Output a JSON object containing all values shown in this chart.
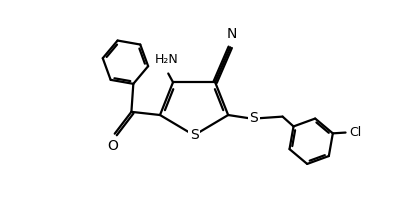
{
  "background_color": "#ffffff",
  "line_color": "#000000",
  "line_width": 1.6,
  "fig_width": 4.12,
  "fig_height": 2.0,
  "dpi": 100,
  "xlim": [
    0,
    10
  ],
  "ylim": [
    0,
    5
  ]
}
